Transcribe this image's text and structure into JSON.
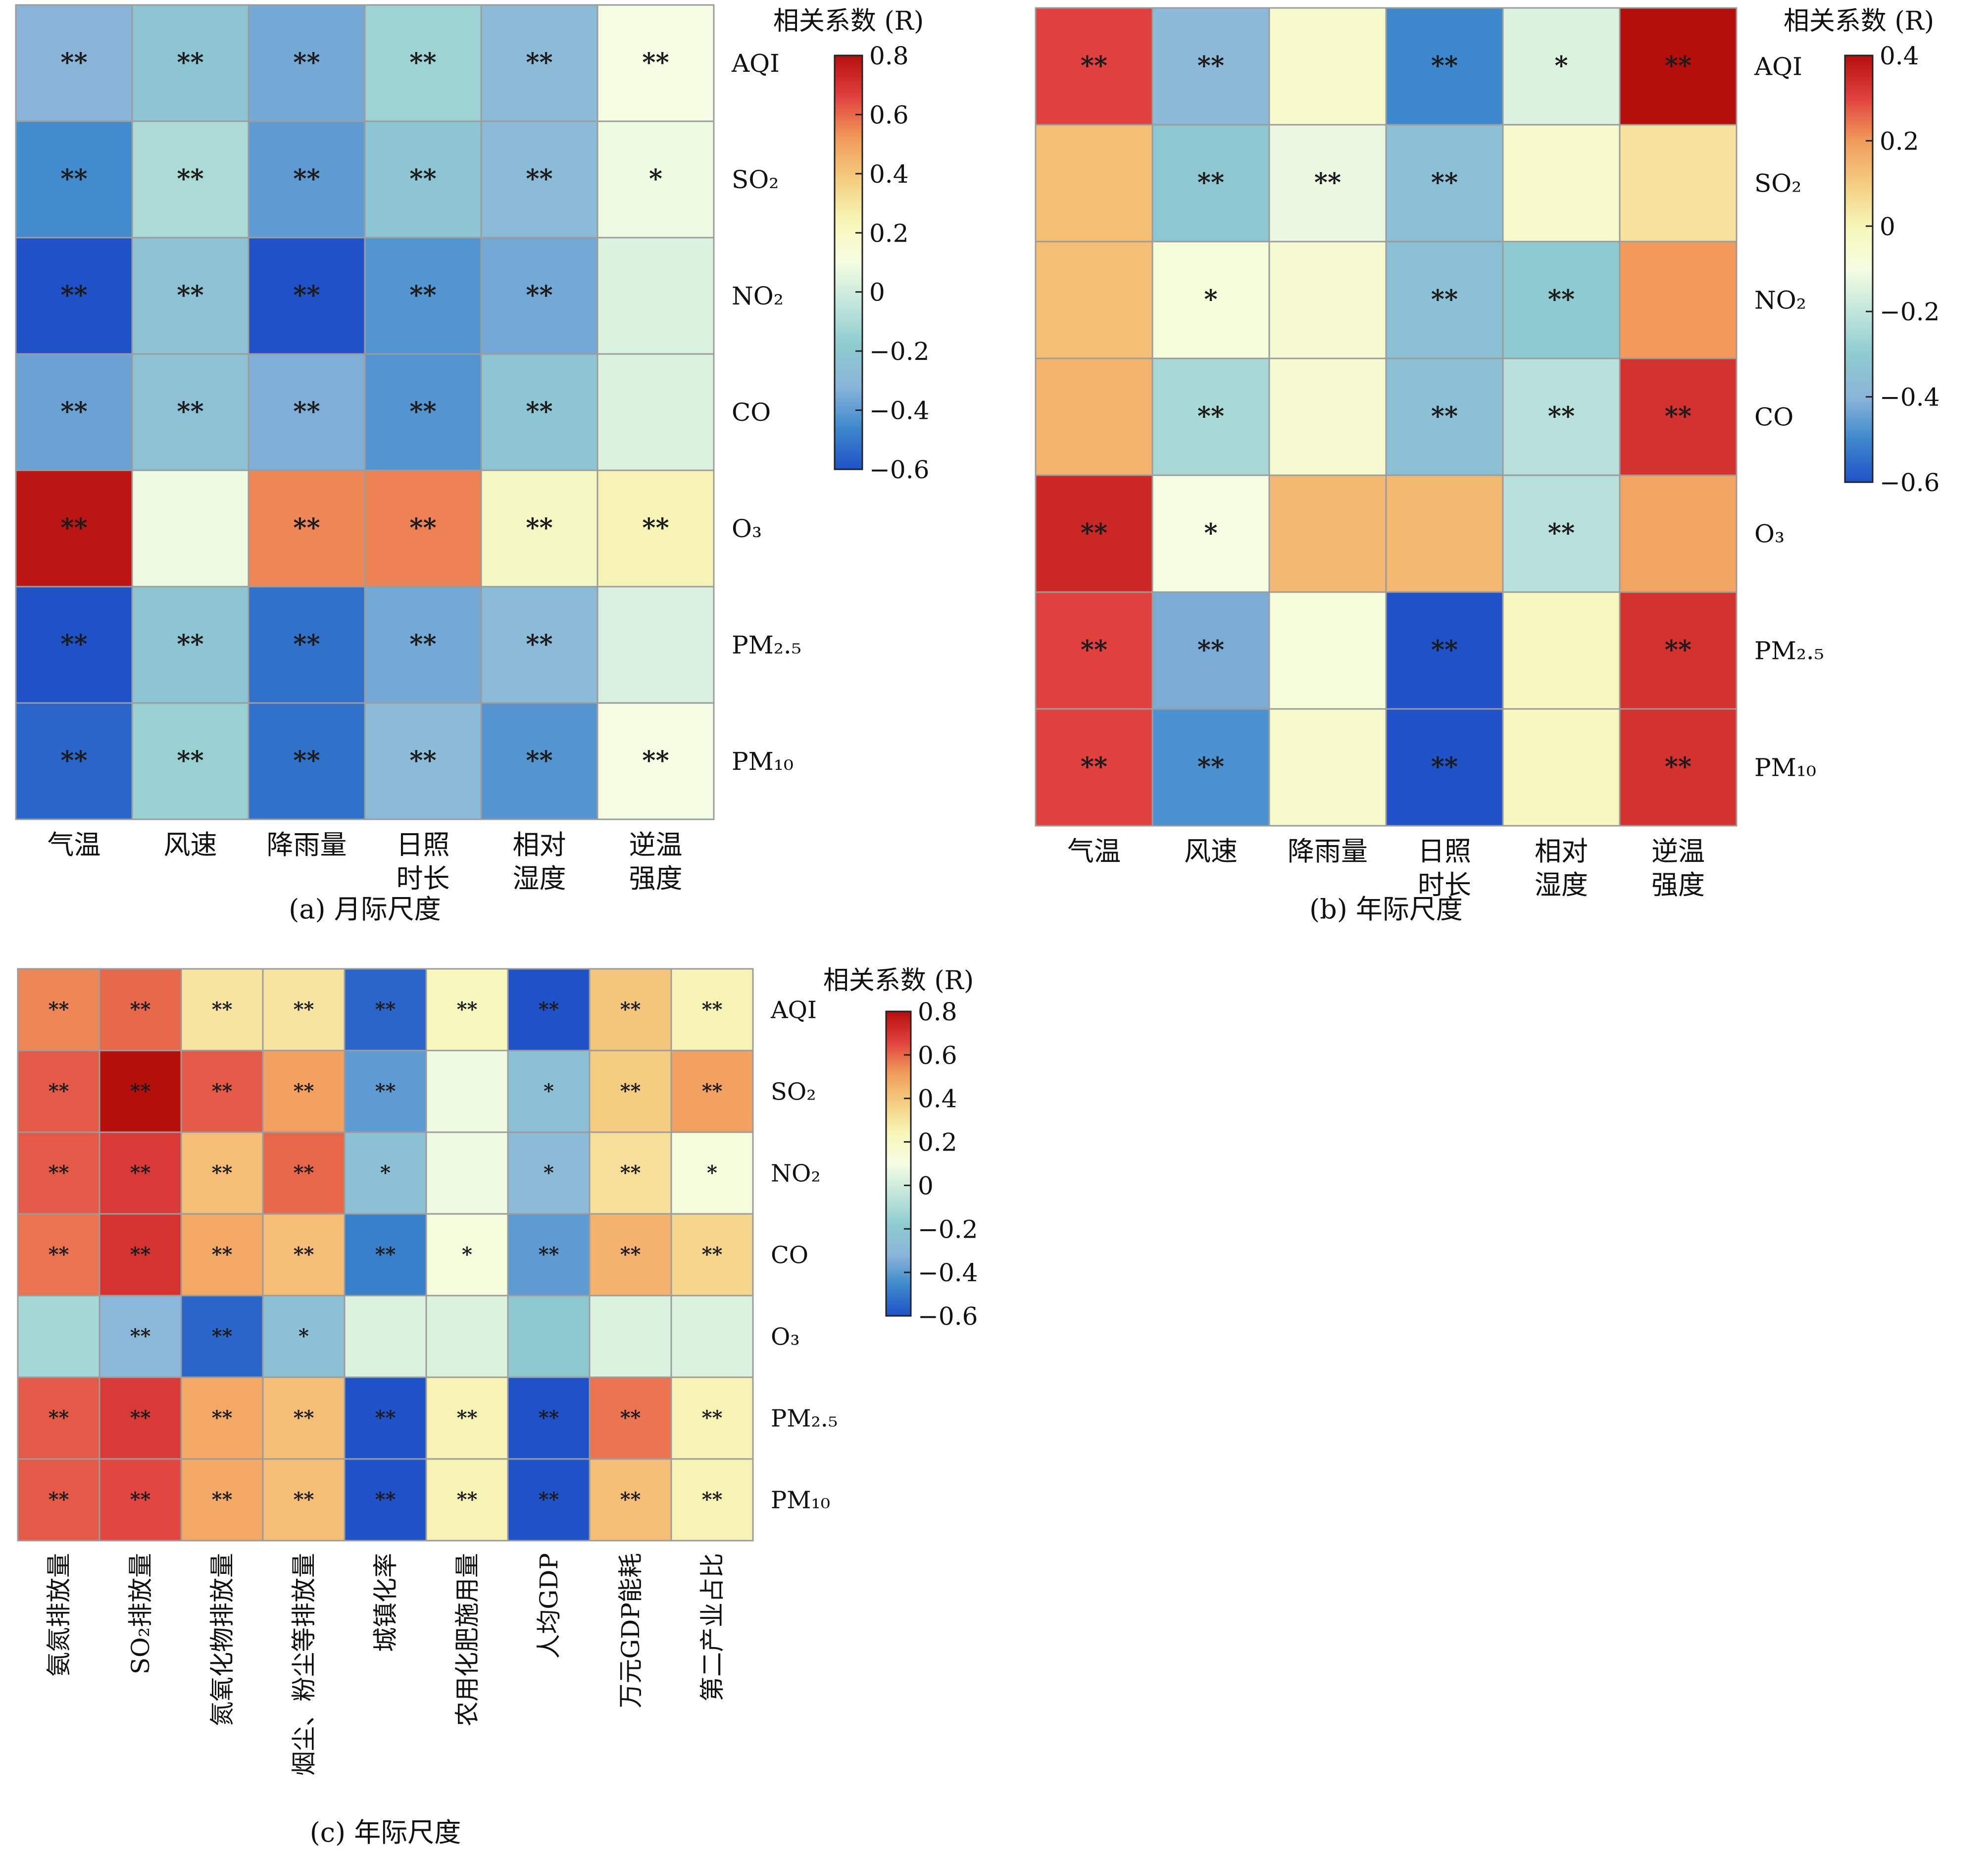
{
  "colorscale": {
    "stops": [
      "#1f52c7",
      "#3d88cc",
      "#8ab5d9",
      "#8ecbd0",
      "#c1e6dc",
      "#f5fde2",
      "#f7f6b8",
      "#f5cd80",
      "#f19a5c",
      "#e0413e",
      "#b50f0c"
    ]
  },
  "chart_data": [
    {
      "type": "heatmap",
      "caption": "(a) 月际尺度",
      "legend_title": "相关系数 (R)",
      "x_labels": [
        "气温",
        "风速",
        "降雨量",
        "日照\n时长",
        "相对\n湿度",
        "逆温\n强度"
      ],
      "y_labels": [
        "AQI",
        "SO₂",
        "NO₂",
        "CO",
        "O₃",
        "PM₂.₅",
        "PM₁₀"
      ],
      "colorbar": {
        "min": -0.6,
        "max": 0.8,
        "ticks": [
          "0.8",
          "0.6",
          "0.4",
          "0.2",
          "0",
          "−0.2",
          "−0.4",
          "−0.6"
        ],
        "tick_values": [
          0.8,
          0.6,
          0.4,
          0.2,
          0,
          -0.2,
          -0.4,
          -0.6
        ]
      },
      "values": [
        [
          -0.32,
          -0.22,
          -0.36,
          -0.14,
          -0.28,
          0.1
        ],
        [
          -0.45,
          -0.1,
          -0.4,
          -0.22,
          -0.28,
          0.08
        ],
        [
          -0.6,
          -0.24,
          -0.62,
          -0.42,
          -0.36,
          0.03
        ],
        [
          -0.38,
          -0.24,
          -0.34,
          -0.42,
          -0.22,
          0.03
        ],
        [
          0.78,
          0.08,
          0.55,
          0.56,
          0.2,
          0.25
        ],
        [
          -0.6,
          -0.22,
          -0.52,
          -0.36,
          -0.28,
          0.02
        ],
        [
          -0.55,
          -0.15,
          -0.52,
          -0.28,
          -0.42,
          0.1
        ]
      ],
      "significance": [
        [
          "**",
          "**",
          "**",
          "**",
          "**",
          "**"
        ],
        [
          "**",
          "**",
          "**",
          "**",
          "**",
          "*"
        ],
        [
          "**",
          "**",
          "**",
          "**",
          "**",
          ""
        ],
        [
          "**",
          "**",
          "**",
          "**",
          "**",
          ""
        ],
        [
          "**",
          "",
          "**",
          "**",
          "**",
          "**"
        ],
        [
          "**",
          "**",
          "**",
          "**",
          "**",
          ""
        ],
        [
          "**",
          "**",
          "**",
          "**",
          "**",
          "**"
        ]
      ]
    },
    {
      "type": "heatmap",
      "caption": "(b) 年际尺度",
      "legend_title": "相关系数 (R)",
      "x_labels": [
        "气温",
        "风速",
        "降雨量",
        "日照\n时长",
        "相对\n湿度",
        "逆温\n强度"
      ],
      "y_labels": [
        "AQI",
        "SO₂",
        "NO₂",
        "CO",
        "O₃",
        "PM₂.₅",
        "PM₁₀"
      ],
      "colorbar": {
        "min": -0.6,
        "max": 0.4,
        "ticks": [
          "0.4",
          "0.2",
          "0",
          "−0.2",
          "−0.4",
          "−0.6"
        ],
        "tick_values": [
          0.4,
          0.2,
          0,
          -0.2,
          -0.4,
          -0.6
        ]
      },
      "values": [
        [
          0.3,
          -0.38,
          -0.05,
          -0.5,
          -0.15,
          0.4
        ],
        [
          0.13,
          -0.32,
          -0.12,
          -0.35,
          -0.05,
          0.05
        ],
        [
          0.13,
          -0.08,
          -0.06,
          -0.35,
          -0.3,
          0.2
        ],
        [
          0.15,
          -0.25,
          -0.06,
          -0.35,
          -0.22,
          0.33
        ],
        [
          0.35,
          -0.1,
          0.14,
          0.14,
          -0.22,
          0.18
        ],
        [
          0.3,
          -0.42,
          -0.08,
          -0.6,
          -0.02,
          0.33
        ],
        [
          0.3,
          -0.48,
          -0.04,
          -0.62,
          -0.02,
          0.33
        ]
      ],
      "significance": [
        [
          "**",
          "**",
          "",
          "**",
          "*",
          "**"
        ],
        [
          "",
          "**",
          "**",
          "**",
          "",
          ""
        ],
        [
          "",
          "*",
          "",
          "**",
          "**",
          ""
        ],
        [
          "",
          "**",
          "",
          "**",
          "**",
          "**"
        ],
        [
          "**",
          "*",
          "",
          "",
          "**",
          ""
        ],
        [
          "**",
          "**",
          "",
          "**",
          "",
          "**"
        ],
        [
          "**",
          "**",
          "",
          "**",
          "",
          "**"
        ]
      ]
    },
    {
      "type": "heatmap",
      "caption": "(c) 年际尺度",
      "legend_title": "相关系数 (R)",
      "x_labels": [
        "氨氮排放量",
        "SO₂排放量",
        "氮氧化物排放量",
        "烟尘、粉尘等排放量",
        "城镇化率",
        "农用化肥施用量",
        "人均GDP",
        "万元GDP能耗",
        "第二产业占比"
      ],
      "y_labels": [
        "AQI",
        "SO₂",
        "NO₂",
        "CO",
        "O₃",
        "PM₂.₅",
        "PM₁₀"
      ],
      "colorbar": {
        "min": -0.6,
        "max": 0.8,
        "ticks": [
          "0.8",
          "0.6",
          "0.4",
          "0.2",
          "0",
          "−0.2",
          "−0.4",
          "−0.6"
        ],
        "tick_values": [
          0.8,
          0.6,
          0.4,
          0.2,
          0,
          -0.2,
          -0.4,
          -0.6
        ]
      },
      "values": [
        [
          0.55,
          0.6,
          0.3,
          0.3,
          -0.55,
          0.22,
          -0.62,
          0.4,
          0.25
        ],
        [
          0.62,
          0.8,
          0.62,
          0.5,
          -0.4,
          0.08,
          -0.25,
          0.38,
          0.5
        ],
        [
          0.62,
          0.68,
          0.42,
          0.6,
          -0.25,
          0.08,
          -0.28,
          0.32,
          0.12
        ],
        [
          0.58,
          0.7,
          0.48,
          0.42,
          -0.48,
          0.12,
          -0.4,
          0.45,
          0.35
        ],
        [
          -0.12,
          -0.3,
          -0.55,
          -0.25,
          0.03,
          0.03,
          -0.2,
          0.03,
          0.03
        ],
        [
          0.62,
          0.68,
          0.48,
          0.42,
          -0.62,
          0.25,
          -0.62,
          0.58,
          0.25
        ],
        [
          0.62,
          0.65,
          0.48,
          0.42,
          -0.62,
          0.25,
          -0.62,
          0.42,
          0.25
        ]
      ],
      "significance": [
        [
          "**",
          "**",
          "**",
          "**",
          "**",
          "**",
          "**",
          "**",
          "**"
        ],
        [
          "**",
          "**",
          "**",
          "**",
          "**",
          "",
          "*",
          "**",
          "**"
        ],
        [
          "**",
          "**",
          "**",
          "**",
          "*",
          "",
          "*",
          "**",
          "*"
        ],
        [
          "**",
          "**",
          "**",
          "**",
          "**",
          "*",
          "**",
          "**",
          "**"
        ],
        [
          "",
          "**",
          "**",
          "*",
          "",
          "",
          "",
          "",
          ""
        ],
        [
          "**",
          "**",
          "**",
          "**",
          "**",
          "**",
          "**",
          "**",
          "**"
        ],
        [
          "**",
          "**",
          "**",
          "**",
          "**",
          "**",
          "**",
          "**",
          "**"
        ]
      ]
    }
  ]
}
